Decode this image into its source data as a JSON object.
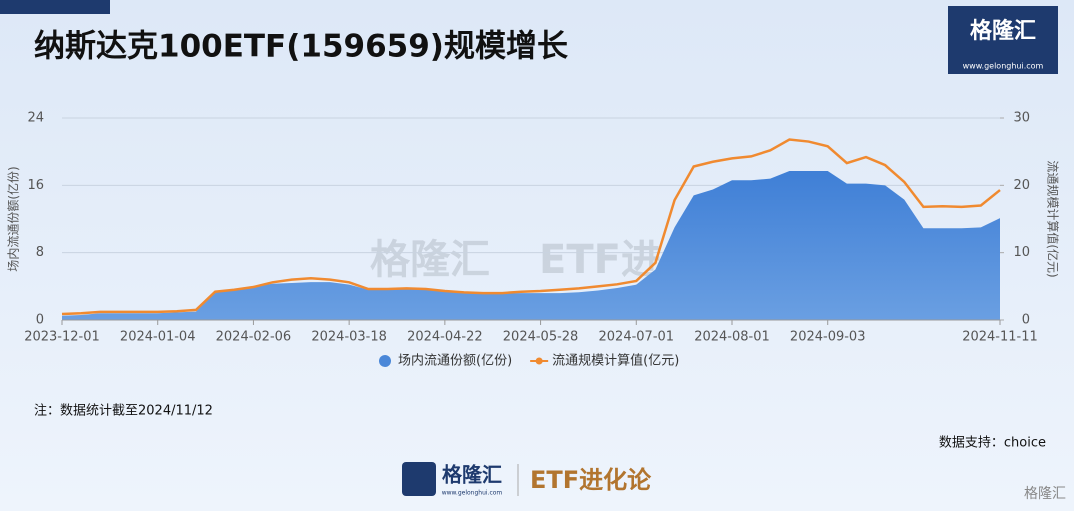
{
  "chart_data": {
    "type": "area-line",
    "title": "纳斯达克100ETF(159659)规模增长",
    "y_label": "场内流通份额(亿份)",
    "y2_label": "流通规模计算值(亿元)",
    "categories": [
      "2023-12-01",
      null,
      null,
      null,
      null,
      "2024-01-04",
      null,
      null,
      null,
      null,
      "2024-02-06",
      null,
      null,
      null,
      null,
      "2024-03-18",
      null,
      null,
      null,
      null,
      "2024-04-22",
      null,
      null,
      null,
      null,
      "2024-05-28",
      null,
      null,
      null,
      null,
      "2024-07-01",
      null,
      null,
      null,
      null,
      "2024-08-01",
      null,
      null,
      null,
      null,
      "2024-09-03",
      null,
      null,
      null,
      null,
      null,
      null,
      null,
      null,
      "2024-11-11"
    ],
    "series": [
      {
        "name": "场内流通份额(亿份)",
        "color": "#4a87d8",
        "kind": "area",
        "axis": "y",
        "values": [
          0.5,
          0.6,
          0.8,
          0.8,
          0.8,
          0.8,
          0.9,
          1.0,
          3.3,
          3.5,
          4.0,
          4.3,
          4.4,
          4.5,
          4.5,
          4.2,
          3.6,
          3.6,
          3.7,
          3.6,
          3.4,
          3.3,
          3.3,
          3.2,
          3.2,
          3.2,
          3.2,
          3.3,
          3.5,
          3.8,
          4.2,
          6.0,
          11.0,
          14.8,
          15.5,
          16.6,
          16.6,
          16.8,
          17.7,
          17.7,
          17.7,
          16.2,
          16.2,
          16.0,
          14.3,
          10.9,
          10.9,
          10.9,
          11.0,
          12.1
        ]
      },
      {
        "name": "流通规模计算值(亿元)",
        "color": "#f08a30",
        "kind": "line",
        "axis": "y2",
        "values": [
          0.9,
          1.0,
          1.2,
          1.2,
          1.2,
          1.2,
          1.3,
          1.5,
          4.2,
          4.5,
          4.9,
          5.6,
          6.0,
          6.2,
          6.0,
          5.6,
          4.6,
          4.6,
          4.7,
          4.6,
          4.3,
          4.1,
          4.0,
          4.0,
          4.2,
          4.3,
          4.5,
          4.7,
          5.0,
          5.3,
          5.8,
          8.5,
          17.8,
          22.8,
          23.5,
          24.0,
          24.3,
          25.2,
          26.8,
          26.5,
          25.8,
          23.3,
          24.2,
          23.0,
          20.5,
          16.8,
          16.9,
          16.8,
          17.0,
          19.3
        ]
      }
    ],
    "ylim": [
      0,
      24
    ],
    "yticks": [
      0,
      8,
      16,
      24
    ],
    "y2lim": [
      0,
      30
    ],
    "y2ticks": [
      0,
      10,
      20,
      30
    ],
    "grid": true,
    "legend": "bottom",
    "note": "注：数据统计截至2024/11/12",
    "source": "数据支持：choice"
  },
  "branding": {
    "logo": "格隆汇",
    "url": "www.gelonghui.com",
    "column": "ETF进化论"
  }
}
